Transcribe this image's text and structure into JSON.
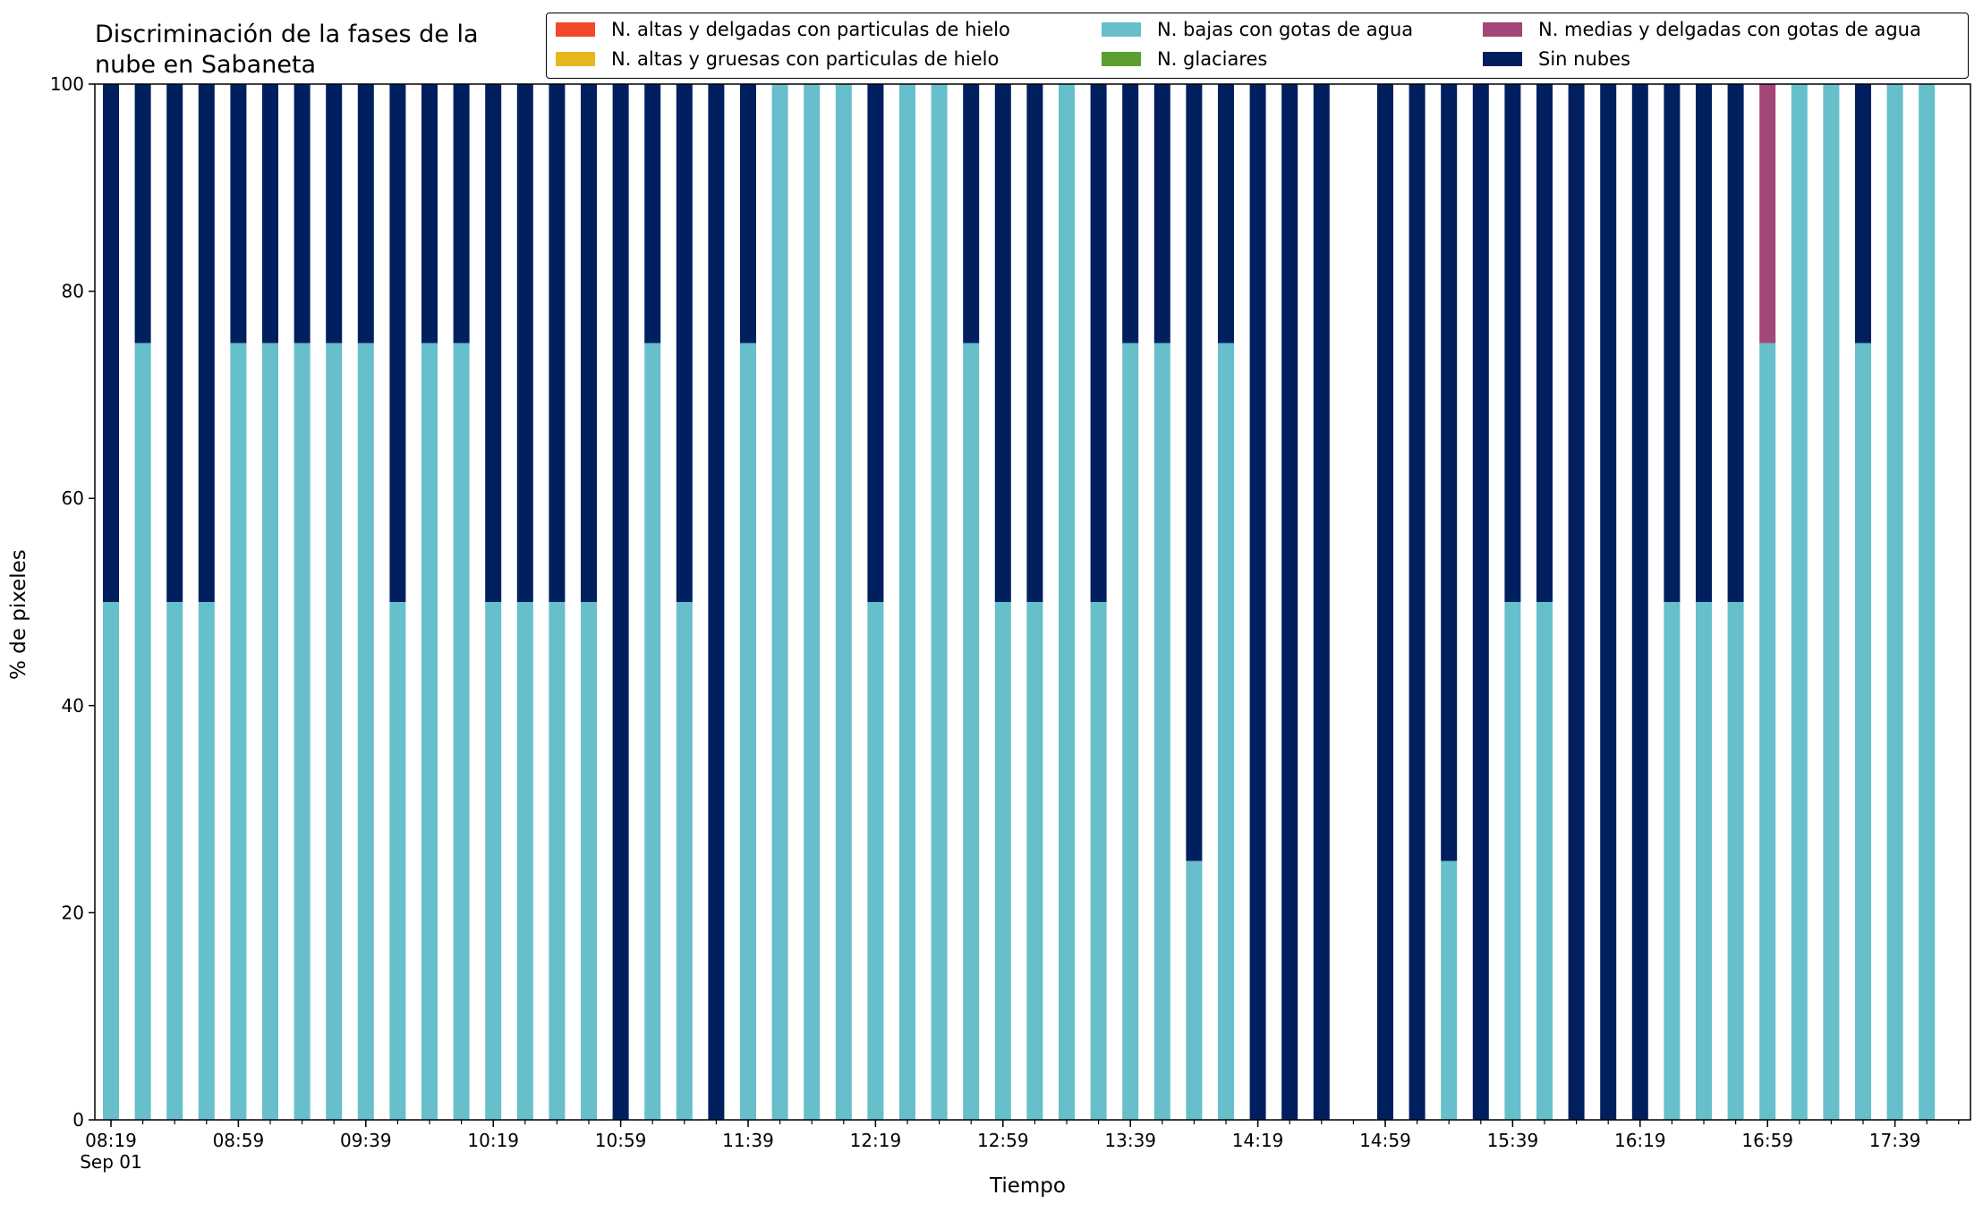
{
  "chart_data": {
    "type": "bar",
    "stacked": true,
    "title": "Discriminación de la fases de la\nnube en Sabaneta",
    "xlabel": "Tiempo",
    "ylabel": "% de pixeles",
    "ylim": [
      0,
      100
    ],
    "yticks": [
      0,
      20,
      40,
      60,
      80,
      100
    ],
    "xticks": [
      {
        "index": 0,
        "label": "08:19\nSep 01"
      },
      {
        "index": 4,
        "label": "08:59"
      },
      {
        "index": 8,
        "label": "09:39"
      },
      {
        "index": 12,
        "label": "10:19"
      },
      {
        "index": 16,
        "label": "10:59"
      },
      {
        "index": 20,
        "label": "11:39"
      },
      {
        "index": 24,
        "label": "12:19"
      },
      {
        "index": 28,
        "label": "12:59"
      },
      {
        "index": 32,
        "label": "13:39"
      },
      {
        "index": 36,
        "label": "14:19"
      },
      {
        "index": 40,
        "label": "14:59"
      },
      {
        "index": 44,
        "label": "15:39"
      },
      {
        "index": 48,
        "label": "16:19"
      },
      {
        "index": 52,
        "label": "16:59"
      },
      {
        "index": 56,
        "label": "17:39"
      }
    ],
    "legend_placement": "top-right",
    "grid": false,
    "series": [
      {
        "name": "N. altas y delgadas con particulas de hielo",
        "color": "#f04a2a",
        "values": [
          0,
          0,
          0,
          0,
          0,
          0,
          0,
          0,
          0,
          0,
          0,
          0,
          0,
          0,
          0,
          0,
          0,
          0,
          0,
          0,
          0,
          0,
          0,
          0,
          0,
          0,
          0,
          0,
          0,
          0,
          0,
          0,
          0,
          0,
          0,
          0,
          0,
          0,
          0,
          0,
          0,
          0,
          0,
          0,
          0,
          0,
          0,
          0,
          0,
          0,
          0,
          0,
          0,
          0,
          0,
          0,
          0,
          0
        ]
      },
      {
        "name": "N. altas y gruesas con particulas de hielo",
        "color": "#e6b81e",
        "values": [
          0,
          0,
          0,
          0,
          0,
          0,
          0,
          0,
          0,
          0,
          0,
          0,
          0,
          0,
          0,
          0,
          0,
          0,
          0,
          0,
          0,
          0,
          0,
          0,
          0,
          0,
          0,
          0,
          0,
          0,
          0,
          0,
          0,
          0,
          0,
          0,
          0,
          0,
          0,
          0,
          0,
          0,
          0,
          0,
          0,
          0,
          0,
          0,
          0,
          0,
          0,
          0,
          0,
          0,
          0,
          0,
          0,
          0
        ]
      },
      {
        "name": "N. bajas con gotas de agua",
        "color": "#66bfcb",
        "values": [
          50,
          75,
          50,
          50,
          75,
          75,
          75,
          75,
          75,
          50,
          75,
          75,
          50,
          50,
          50,
          50,
          0,
          75,
          50,
          0,
          75,
          100,
          100,
          100,
          50,
          100,
          100,
          75,
          50,
          50,
          100,
          50,
          75,
          75,
          25,
          75,
          0,
          0,
          0,
          null,
          0,
          0,
          25,
          0,
          50,
          50,
          0,
          0,
          0,
          50,
          50,
          50,
          75,
          100,
          100,
          75,
          100,
          100
        ]
      },
      {
        "name": "N. glaciares",
        "color": "#5b9f30",
        "values": [
          0,
          0,
          0,
          0,
          0,
          0,
          0,
          0,
          0,
          0,
          0,
          0,
          0,
          0,
          0,
          0,
          0,
          0,
          0,
          0,
          0,
          0,
          0,
          0,
          0,
          0,
          0,
          0,
          0,
          0,
          0,
          0,
          0,
          0,
          0,
          0,
          0,
          0,
          0,
          0,
          0,
          0,
          0,
          0,
          0,
          0,
          0,
          0,
          0,
          0,
          0,
          0,
          0,
          0,
          0,
          0,
          0,
          0
        ]
      },
      {
        "name": "N. medias y delgadas con gotas de agua",
        "color": "#a34678",
        "values": [
          0,
          0,
          0,
          0,
          0,
          0,
          0,
          0,
          0,
          0,
          0,
          0,
          0,
          0,
          0,
          0,
          0,
          0,
          0,
          0,
          0,
          0,
          0,
          0,
          0,
          0,
          0,
          0,
          0,
          0,
          0,
          0,
          0,
          0,
          0,
          0,
          0,
          0,
          0,
          null,
          0,
          0,
          0,
          0,
          0,
          0,
          0,
          0,
          0,
          0,
          0,
          0,
          25,
          0,
          0,
          0,
          0,
          0
        ]
      },
      {
        "name": "Sin nubes",
        "color": "#001f5f",
        "values": [
          50,
          25,
          50,
          50,
          25,
          25,
          25,
          25,
          25,
          50,
          25,
          25,
          50,
          50,
          50,
          50,
          100,
          25,
          50,
          100,
          25,
          0,
          0,
          0,
          50,
          0,
          0,
          25,
          50,
          50,
          0,
          50,
          25,
          25,
          75,
          25,
          100,
          100,
          100,
          null,
          100,
          100,
          75,
          100,
          50,
          50,
          100,
          100,
          100,
          50,
          50,
          50,
          0,
          0,
          0,
          25,
          0,
          0
        ]
      }
    ]
  }
}
